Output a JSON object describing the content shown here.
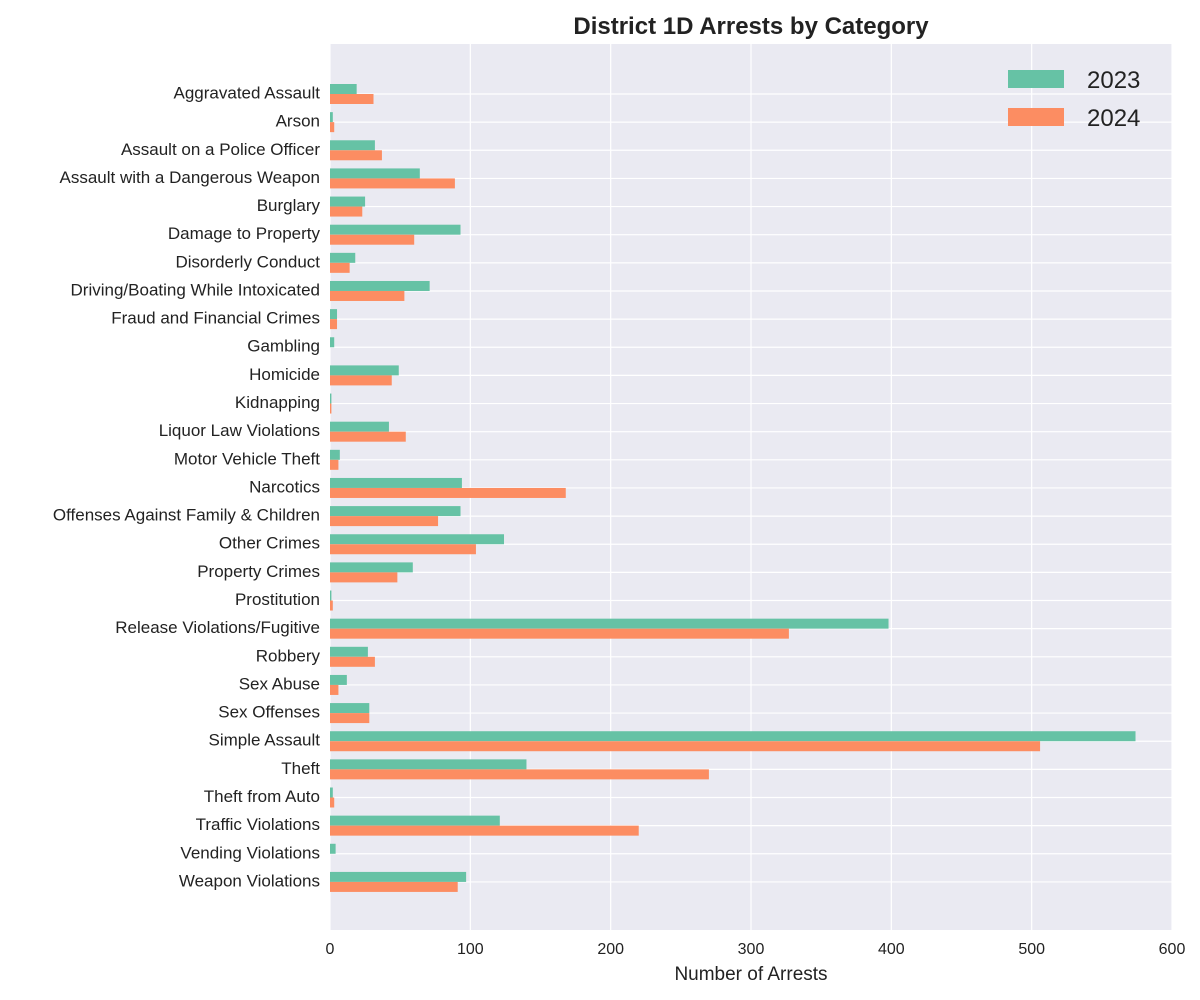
{
  "chart_data": {
    "type": "bar",
    "orientation": "horizontal",
    "title": "District 1D Arrests by Category",
    "xlabel": "Number of Arrests",
    "ylabel": "",
    "xlim": [
      0,
      600
    ],
    "xticks": [
      0,
      100,
      200,
      300,
      400,
      500,
      600
    ],
    "grid": true,
    "legend_position": "top-right",
    "categories": [
      "Aggravated Assault",
      "Arson",
      "Assault on a Police Officer",
      "Assault with a Dangerous Weapon",
      "Burglary",
      "Damage to Property",
      "Disorderly Conduct",
      "Driving/Boating While Intoxicated",
      "Fraud and Financial Crimes",
      "Gambling",
      "Homicide",
      "Kidnapping",
      "Liquor Law Violations",
      "Motor Vehicle Theft",
      "Narcotics",
      "Offenses Against Family & Children",
      "Other Crimes",
      "Property Crimes",
      "Prostitution",
      "Release Violations/Fugitive",
      "Robbery",
      "Sex Abuse",
      "Sex Offenses",
      "Simple Assault",
      "Theft",
      "Theft from Auto",
      "Traffic Violations",
      "Vending Violations",
      "Weapon Violations"
    ],
    "series": [
      {
        "name": "2023",
        "color": "#66c2a5",
        "values": [
          19,
          2,
          32,
          64,
          25,
          93,
          18,
          71,
          5,
          3,
          49,
          1,
          42,
          7,
          94,
          93,
          124,
          59,
          1,
          398,
          27,
          12,
          28,
          574,
          140,
          2,
          121,
          4,
          97
        ]
      },
      {
        "name": "2024",
        "color": "#fc8d62",
        "values": [
          31,
          3,
          37,
          89,
          23,
          60,
          14,
          53,
          5,
          0,
          44,
          1,
          54,
          6,
          168,
          77,
          104,
          48,
          2,
          327,
          32,
          6,
          28,
          506,
          270,
          3,
          220,
          0,
          91
        ]
      }
    ]
  },
  "colors": {
    "plot_background": "#eaeaf2",
    "grid": "#ffffff",
    "text": "#222222"
  }
}
